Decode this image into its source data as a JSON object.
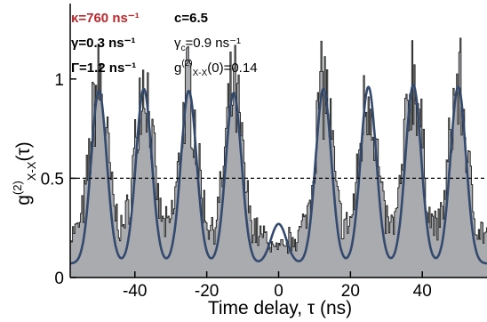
{
  "chart_data": {
    "type": "line",
    "title": "",
    "xlabel": "Time delay, τ (ns)",
    "ylabel": "g(2)X-X(τ)",
    "xlim": [
      -58,
      58
    ],
    "ylim": [
      0,
      1.38
    ],
    "x_ticks": [
      -40,
      -20,
      0,
      20,
      40
    ],
    "x_tick_labels": [
      "-40",
      "-20",
      "0",
      "20",
      "40"
    ],
    "y_ticks": [
      0,
      0.5,
      1
    ],
    "y_tick_labels": [
      "0",
      "0.5",
      "1"
    ],
    "reference_line": {
      "y": 0.5,
      "style": "dashed"
    },
    "grid": false,
    "legend": "none",
    "peak_period_ns": 12.5,
    "peak_positions_ns": [
      -50,
      -37.5,
      -25,
      -12.5,
      0,
      12.5,
      25,
      37.5,
      50
    ],
    "series": [
      {
        "style": "histogram",
        "color": "#a9abae",
        "outline_color": "#1c1c1c",
        "peak_heights": [
          0.98,
          1.0,
          0.95,
          0.93,
          0.14,
          0.97,
          0.93,
          1.02,
          0.97
        ],
        "baseline": 0.22
      },
      {
        "style": "line",
        "color": "#334a6e",
        "peak_heights": [
          0.94,
          0.95,
          0.94,
          0.93,
          0.27,
          0.95,
          0.96,
          0.97,
          0.96
        ],
        "baseline": 0.07,
        "peak_width_ns": 2.6
      }
    ]
  },
  "annotations": {
    "kappa": "κ=760 ns⁻¹",
    "c": "c=6.5",
    "gamma": "γ=0.3 ns⁻¹",
    "gamma_c_symbol": "γ",
    "gamma_c_sub": "c",
    "gamma_c_value": "=0.9 ns⁻¹",
    "Gamma": "Γ=1.2 ns⁻¹",
    "g2_prefix": "g",
    "g2_sup": "(2)",
    "g2_sub": "X-X",
    "g2_value": "(0)=0.14"
  },
  "colors": {
    "histogram_fill": "#a9abae",
    "fit_line": "#334a6e",
    "kappa_text": "#c0262c"
  }
}
